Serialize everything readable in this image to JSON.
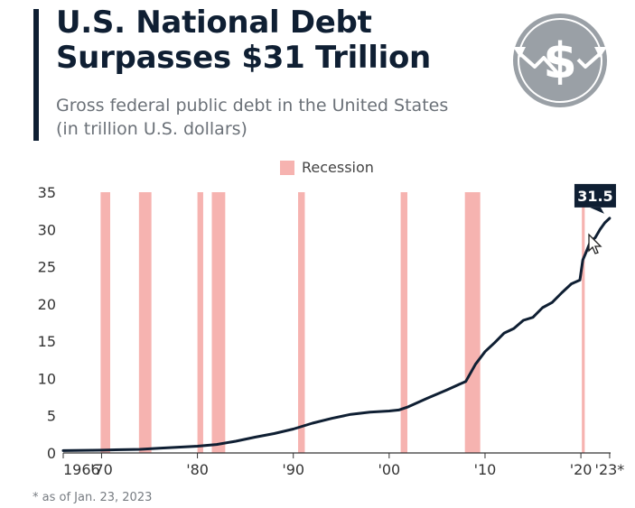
{
  "header": {
    "title_line1": "U.S. National Debt",
    "title_line2": "Surpasses $31 Trillion",
    "subtitle_line1": "Gross federal public debt in the United States",
    "subtitle_line2": "(in trillion U.S. dollars)"
  },
  "logo": {
    "icon": "dollar-arrows-icon",
    "color": "#9aa0a6"
  },
  "footnote": "* as of Jan. 23, 2023",
  "colors": {
    "line": "#0f1f33",
    "recession": "#f6b3b0",
    "label_bg": "#0f1f33",
    "label_text": "#ffffff",
    "axis": "#333333",
    "tick_text": "#333333"
  },
  "chart_data": {
    "type": "line",
    "title": "U.S. National Debt Surpasses $31 Trillion",
    "subtitle": "Gross federal public debt in the United States (in trillion U.S. dollars)",
    "xlabel": "",
    "ylabel": "",
    "xlim": [
      1966,
      2023.1
    ],
    "ylim": [
      0,
      35
    ],
    "grid": false,
    "legend": {
      "position": "top-center",
      "entries": [
        "Recession"
      ]
    },
    "y_ticks": [
      0,
      5,
      10,
      15,
      20,
      25,
      30,
      35
    ],
    "x_ticks": [
      {
        "value": 1966,
        "label": "1966"
      },
      {
        "value": 1970,
        "label": "'70"
      },
      {
        "value": 1980,
        "label": "'80"
      },
      {
        "value": 1990,
        "label": "'90"
      },
      {
        "value": 2000,
        "label": "'00"
      },
      {
        "value": 2010,
        "label": "'10"
      },
      {
        "value": 2020,
        "label": "'20"
      },
      {
        "value": 2023,
        "label": "'23*"
      }
    ],
    "recessions": [
      {
        "start": 1969.9,
        "end": 1970.9
      },
      {
        "start": 1973.9,
        "end": 1975.2
      },
      {
        "start": 1980.0,
        "end": 1980.6
      },
      {
        "start": 1981.5,
        "end": 1982.9
      },
      {
        "start": 1990.5,
        "end": 1991.2
      },
      {
        "start": 2001.2,
        "end": 2001.9
      },
      {
        "start": 2007.9,
        "end": 2009.5
      },
      {
        "start": 2020.1,
        "end": 2020.4
      }
    ],
    "series": [
      {
        "x": [
          1966,
          1968,
          1970,
          1972,
          1974,
          1976,
          1978,
          1980,
          1982,
          1984,
          1986,
          1988,
          1990,
          1992,
          1994,
          1996,
          1998,
          2000,
          2001,
          2002,
          2004,
          2006,
          2008,
          2009,
          2010,
          2011,
          2012,
          2013,
          2014,
          2015,
          2016,
          2017,
          2018,
          2019,
          2019.9,
          2020.2,
          2020.5,
          2021,
          2021.5,
          2022,
          2022.5,
          2023
        ],
        "values": [
          0.32,
          0.35,
          0.38,
          0.44,
          0.48,
          0.63,
          0.77,
          0.91,
          1.14,
          1.57,
          2.12,
          2.6,
          3.21,
          4.0,
          4.64,
          5.18,
          5.48,
          5.63,
          5.77,
          6.2,
          7.35,
          8.45,
          9.6,
          11.9,
          13.6,
          14.8,
          16.1,
          16.7,
          17.8,
          18.2,
          19.5,
          20.2,
          21.5,
          22.7,
          23.2,
          25.9,
          26.8,
          28.4,
          28.9,
          30.0,
          30.9,
          31.5
        ]
      }
    ],
    "annotation": {
      "x": 2023,
      "y": 31.5,
      "label": "31.5"
    }
  }
}
